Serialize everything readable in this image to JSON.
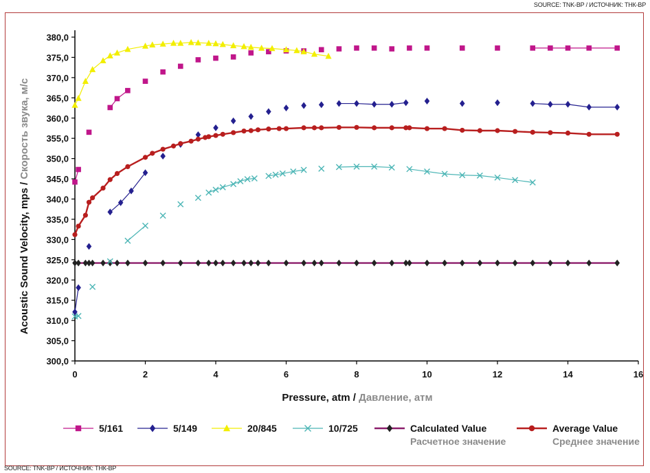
{
  "source_top": "SOURCE: TNK-BP / ИСТОЧНИК: ТНК-ВР",
  "source_bottom": "SOURCE: TNK-BP / ИСТОЧНИК: ТНК-ВР",
  "colors": {
    "s5_161": "#c0168a",
    "s5_149": "#24208f",
    "s20_845": "#f2ee00",
    "s10_725": "#4bb5b5",
    "calculated": "#8b1c6a",
    "average": "#b81e1e",
    "subtext": "#8a8a8a"
  },
  "chart_data": {
    "type": "line",
    "xlabel": "Pressure, atm",
    "xlabel_ru": "Давление, атм",
    "ylabel": "Acoustic Sound Velocity, mps",
    "ylabel_ru": "Скорость звука, м/с",
    "xlim": [
      0,
      16
    ],
    "ylim": [
      300,
      380
    ],
    "x_ticks": [
      "0",
      "2",
      "4",
      "6",
      "8",
      "10",
      "12",
      "14",
      "16"
    ],
    "y_ticks": [
      "300,0",
      "305,0",
      "310,0",
      "315,0",
      "320,0",
      "325,0",
      "330,0",
      "335,0",
      "340,0",
      "345,0",
      "350,0",
      "355,0",
      "360,0",
      "365,0",
      "370,0",
      "375,0",
      "380,0"
    ],
    "grid": false,
    "legend_position": "bottom",
    "series": [
      {
        "name": "5/161",
        "marker": "square",
        "color_key": "s5_161",
        "segments": [
          [
            [
              0,
              344.2
            ],
            [
              0.1,
              347.3
            ]
          ],
          [
            [
              0.4,
              356.5
            ]
          ],
          [
            [
              1,
              362.6
            ],
            [
              1.2,
              364.8
            ],
            [
              1.5,
              366.8
            ]
          ],
          [
            [
              2,
              369.1
            ]
          ],
          [
            [
              2.5,
              371.4
            ]
          ],
          [
            [
              3,
              372.8
            ]
          ],
          [
            [
              3.5,
              374.4
            ]
          ],
          [
            [
              4,
              374.8
            ]
          ],
          [
            [
              4.5,
              375.1
            ]
          ],
          [
            [
              5,
              376.1
            ]
          ],
          [
            [
              5.5,
              376.4
            ]
          ],
          [
            [
              6,
              376.6
            ]
          ],
          [
            [
              6.5,
              376.6
            ]
          ],
          [
            [
              7,
              376.9
            ]
          ],
          [
            [
              7.5,
              377.1
            ]
          ],
          [
            [
              8,
              377.3
            ]
          ],
          [
            [
              8.5,
              377.3
            ]
          ],
          [
            [
              9,
              377.1
            ]
          ],
          [
            [
              9.5,
              377.3
            ]
          ],
          [
            [
              10,
              377.3
            ]
          ],
          [
            [
              11,
              377.3
            ]
          ],
          [
            [
              12,
              377.3
            ]
          ],
          [
            [
              13,
              377.3
            ],
            [
              13.5,
              377.3
            ],
            [
              14,
              377.3
            ],
            [
              14.6,
              377.3
            ],
            [
              15.4,
              377.3
            ]
          ]
        ]
      },
      {
        "name": "5/149",
        "marker": "diamond",
        "color_key": "s5_149",
        "segments": [
          [
            [
              0,
              312.1
            ],
            [
              0.1,
              318.1
            ]
          ],
          [
            [
              0.4,
              328.3
            ]
          ],
          [
            [
              1,
              336.8
            ],
            [
              1.3,
              339.1
            ],
            [
              1.6,
              342.0
            ],
            [
              2,
              346.5
            ]
          ],
          [
            [
              2.5,
              350.6
            ]
          ],
          [
            [
              3,
              353.5
            ]
          ],
          [
            [
              3.5,
              355.9
            ]
          ],
          [
            [
              4,
              357.6
            ]
          ],
          [
            [
              4.5,
              359.3
            ]
          ],
          [
            [
              5,
              360.4
            ]
          ],
          [
            [
              5.5,
              361.6
            ]
          ],
          [
            [
              6,
              362.5
            ]
          ],
          [
            [
              6.5,
              363.1
            ]
          ],
          [
            [
              7,
              363.3
            ]
          ],
          [
            [
              7.5,
              363.6
            ],
            [
              8,
              363.6
            ],
            [
              8.5,
              363.4
            ],
            [
              9,
              363.4
            ],
            [
              9.4,
              363.8
            ]
          ],
          [
            [
              10,
              364.2
            ]
          ],
          [
            [
              11,
              363.6
            ]
          ],
          [
            [
              12,
              363.8
            ]
          ],
          [
            [
              13,
              363.6
            ],
            [
              13.5,
              363.4
            ],
            [
              14,
              363.4
            ],
            [
              14.6,
              362.7
            ],
            [
              15.4,
              362.7
            ]
          ]
        ]
      },
      {
        "name": "20/845",
        "marker": "triangle",
        "color_key": "s20_845",
        "segments": [
          [
            [
              0,
              363.2
            ],
            [
              0.1,
              364.9
            ],
            [
              0.3,
              369.1
            ],
            [
              0.5,
              372.0
            ],
            [
              0.8,
              374.2
            ],
            [
              1,
              375.4
            ],
            [
              1.2,
              376.1
            ],
            [
              1.5,
              377.0
            ],
            [
              2,
              377.8
            ],
            [
              2.2,
              378.1
            ],
            [
              2.5,
              378.3
            ],
            [
              2.8,
              378.5
            ],
            [
              3,
              378.5
            ],
            [
              3.3,
              378.7
            ],
            [
              3.5,
              378.6
            ],
            [
              3.8,
              378.5
            ],
            [
              4,
              378.4
            ],
            [
              4.2,
              378.2
            ],
            [
              4.5,
              377.9
            ],
            [
              4.8,
              377.7
            ],
            [
              5,
              377.5
            ],
            [
              5.3,
              377.3
            ],
            [
              5.6,
              377.2
            ],
            [
              6,
              376.9
            ],
            [
              6.3,
              376.7
            ],
            [
              6.5,
              376.4
            ],
            [
              6.8,
              375.8
            ],
            [
              7.2,
              375.3
            ]
          ]
        ]
      },
      {
        "name": "10/725",
        "marker": "x",
        "color_key": "s10_725",
        "segments": [
          [
            [
              0,
              311.0
            ],
            [
              0.1,
              311.1
            ]
          ],
          [
            [
              0.5,
              318.3
            ]
          ],
          [
            [
              1,
              324.6
            ]
          ],
          [
            [
              1.5,
              329.7
            ],
            [
              2,
              333.4
            ]
          ],
          [
            [
              2.5,
              335.9
            ]
          ],
          [
            [
              3,
              338.7
            ]
          ],
          [
            [
              3.5,
              340.3
            ]
          ],
          [
            [
              3.8,
              341.6
            ],
            [
              4,
              342.3
            ],
            [
              4.2,
              342.9
            ],
            [
              4.5,
              343.7
            ],
            [
              4.7,
              344.4
            ],
            [
              4.9,
              344.9
            ],
            [
              5.1,
              345.1
            ]
          ],
          [
            [
              5.5,
              345.7
            ],
            [
              5.7,
              346.0
            ],
            [
              5.9,
              346.3
            ],
            [
              6.2,
              346.8
            ],
            [
              6.5,
              347.2
            ]
          ],
          [
            [
              7,
              347.5
            ]
          ],
          [
            [
              7.5,
              347.9
            ],
            [
              8,
              348.0
            ],
            [
              8.5,
              348.0
            ],
            [
              9,
              347.8
            ]
          ],
          [
            [
              9.5,
              347.4
            ],
            [
              10,
              346.8
            ],
            [
              10.5,
              346.2
            ],
            [
              11,
              345.9
            ],
            [
              11.5,
              345.8
            ],
            [
              12,
              345.3
            ],
            [
              12.5,
              344.7
            ],
            [
              13,
              344.1
            ]
          ]
        ]
      },
      {
        "name": "Calculated Value",
        "name_ru": "Расчетное значение",
        "marker": "diamond",
        "color_key": "calculated",
        "segments": [
          [
            [
              0,
              324.2
            ],
            [
              0.1,
              324.2
            ],
            [
              0.3,
              324.2
            ],
            [
              0.4,
              324.2
            ],
            [
              0.5,
              324.2
            ],
            [
              0.8,
              324.2
            ],
            [
              1,
              324.2
            ],
            [
              1.2,
              324.2
            ],
            [
              1.5,
              324.2
            ],
            [
              2,
              324.2
            ],
            [
              2.5,
              324.2
            ],
            [
              3,
              324.2
            ],
            [
              3.5,
              324.2
            ],
            [
              3.8,
              324.2
            ],
            [
              4,
              324.2
            ],
            [
              4.2,
              324.2
            ],
            [
              4.5,
              324.2
            ],
            [
              4.8,
              324.2
            ],
            [
              5,
              324.2
            ],
            [
              5.2,
              324.2
            ],
            [
              5.5,
              324.2
            ],
            [
              6,
              324.2
            ],
            [
              6.5,
              324.2
            ],
            [
              6.8,
              324.2
            ],
            [
              7,
              324.2
            ],
            [
              7.5,
              324.2
            ],
            [
              8,
              324.2
            ],
            [
              8.5,
              324.2
            ],
            [
              9,
              324.2
            ],
            [
              9.4,
              324.2
            ],
            [
              9.5,
              324.2
            ],
            [
              10,
              324.2
            ],
            [
              10.5,
              324.2
            ],
            [
              11,
              324.2
            ],
            [
              11.5,
              324.2
            ],
            [
              12,
              324.2
            ],
            [
              12.5,
              324.2
            ],
            [
              13,
              324.2
            ],
            [
              13.5,
              324.2
            ],
            [
              14,
              324.2
            ],
            [
              14.6,
              324.2
            ],
            [
              15.4,
              324.2
            ]
          ]
        ]
      },
      {
        "name": "Average Value",
        "name_ru": "Среднее значение",
        "marker": "circle",
        "color_key": "average",
        "segments": [
          [
            [
              0,
              331.2
            ],
            [
              0.1,
              333.3
            ],
            [
              0.3,
              336.0
            ],
            [
              0.4,
              339.2
            ],
            [
              0.5,
              340.3
            ],
            [
              0.8,
              342.7
            ],
            [
              1,
              344.8
            ],
            [
              1.2,
              346.3
            ],
            [
              1.5,
              348.0
            ],
            [
              2,
              350.3
            ],
            [
              2.2,
              351.3
            ],
            [
              2.5,
              352.3
            ],
            [
              2.8,
              353.1
            ],
            [
              3,
              353.7
            ],
            [
              3.3,
              354.3
            ],
            [
              3.5,
              354.8
            ],
            [
              3.7,
              355.2
            ],
            [
              3.8,
              355.4
            ],
            [
              4,
              355.7
            ],
            [
              4.2,
              356.0
            ],
            [
              4.5,
              356.4
            ],
            [
              4.8,
              356.8
            ],
            [
              5,
              356.9
            ],
            [
              5.2,
              357.1
            ],
            [
              5.5,
              357.3
            ],
            [
              5.8,
              357.4
            ],
            [
              6,
              357.4
            ],
            [
              6.5,
              357.6
            ],
            [
              6.8,
              357.6
            ],
            [
              7,
              357.6
            ],
            [
              7.5,
              357.7
            ],
            [
              8,
              357.7
            ],
            [
              8.5,
              357.6
            ],
            [
              9,
              357.6
            ],
            [
              9.4,
              357.6
            ],
            [
              9.5,
              357.6
            ],
            [
              10,
              357.4
            ],
            [
              10.5,
              357.4
            ],
            [
              11,
              357.0
            ],
            [
              11.5,
              356.9
            ],
            [
              12,
              356.9
            ],
            [
              12.5,
              356.7
            ],
            [
              13,
              356.5
            ],
            [
              13.5,
              356.4
            ],
            [
              14,
              356.3
            ],
            [
              14.6,
              356.0
            ],
            [
              15.4,
              356.0
            ]
          ]
        ]
      }
    ]
  }
}
